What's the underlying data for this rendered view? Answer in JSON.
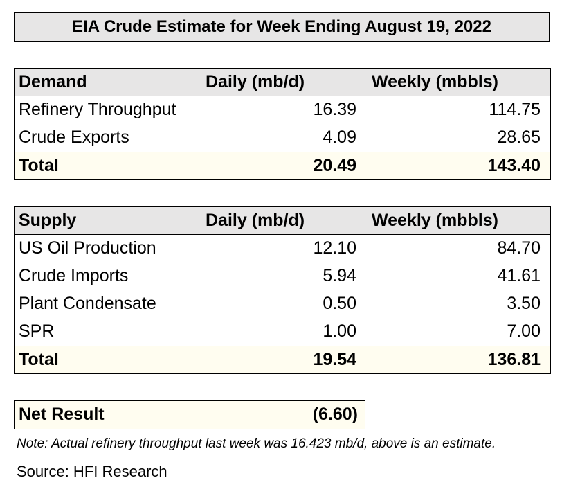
{
  "title": "EIA Crude Estimate for Week Ending August 19, 2022",
  "demand": {
    "header": [
      "Demand",
      "Daily (mb/d)",
      "Weekly (mbbls)"
    ],
    "rows": [
      [
        "Refinery Throughput",
        "16.39",
        "114.75"
      ],
      [
        "Crude Exports",
        "4.09",
        "28.65"
      ]
    ],
    "total": [
      "Total",
      "20.49",
      "143.40"
    ]
  },
  "supply": {
    "header": [
      "Supply",
      "Daily (mb/d)",
      "Weekly (mbbls)"
    ],
    "rows": [
      [
        "US Oil Production",
        "12.10",
        "84.70"
      ],
      [
        "Crude Imports",
        "5.94",
        "41.61"
      ],
      [
        "Plant Condensate",
        "0.50",
        "3.50"
      ],
      [
        "SPR",
        "1.00",
        "7.00"
      ]
    ],
    "total": [
      "Total",
      "19.54",
      "136.81"
    ]
  },
  "net_result": {
    "label": "Net Result",
    "value": "(6.60)"
  },
  "note": "Note: Actual refinery throughput last week was 16.423 mb/d, above is an estimate.",
  "source": "Source: HFI Research"
}
